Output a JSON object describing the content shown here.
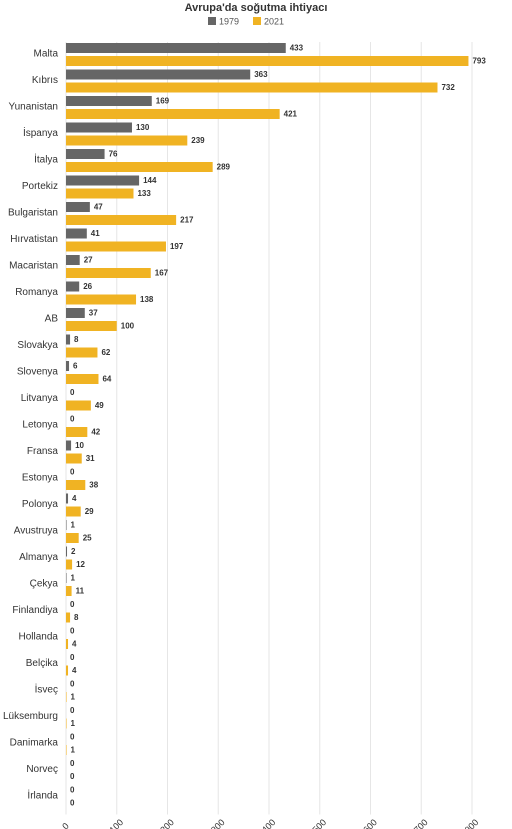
{
  "chart_data": {
    "type": "bar",
    "orientation": "horizontal",
    "title": "Avrupa'da soğutma ihtiyacı",
    "categories": [
      "Malta",
      "Kıbrıs",
      "Yunanistan",
      "İspanya",
      "İtalya",
      "Portekiz",
      "Bulgaristan",
      "Hırvatistan",
      "Macaristan",
      "Romanya",
      "AB",
      "Slovakya",
      "Slovenya",
      "Litvanya",
      "Letonya",
      "Fransa",
      "Estonya",
      "Polonya",
      "Avustruya",
      "Almanya",
      "Çekya",
      "Finlandiya",
      "Hollanda",
      "Belçika",
      "İsveç",
      "Lüksemburg",
      "Danimarka",
      "Norveç",
      "İrlanda"
    ],
    "series": [
      {
        "name": "1979",
        "color": "#666666",
        "values": [
          433,
          363,
          169,
          130,
          76,
          144,
          47,
          41,
          27,
          26,
          37,
          8,
          6,
          0,
          0,
          10,
          0,
          4,
          1,
          2,
          1,
          0,
          0,
          0,
          0,
          0,
          0,
          0,
          0
        ]
      },
      {
        "name": "2021",
        "color": "#f0b323",
        "values": [
          793,
          732,
          421,
          239,
          289,
          133,
          217,
          197,
          167,
          138,
          100,
          62,
          64,
          49,
          42,
          31,
          38,
          29,
          25,
          12,
          11,
          8,
          4,
          4,
          1,
          1,
          1,
          0,
          0
        ]
      }
    ],
    "xlim": [
      0,
      800
    ],
    "xticks": [
      0,
      100,
      200,
      300,
      400,
      500,
      600,
      700,
      800
    ],
    "grid": true
  }
}
